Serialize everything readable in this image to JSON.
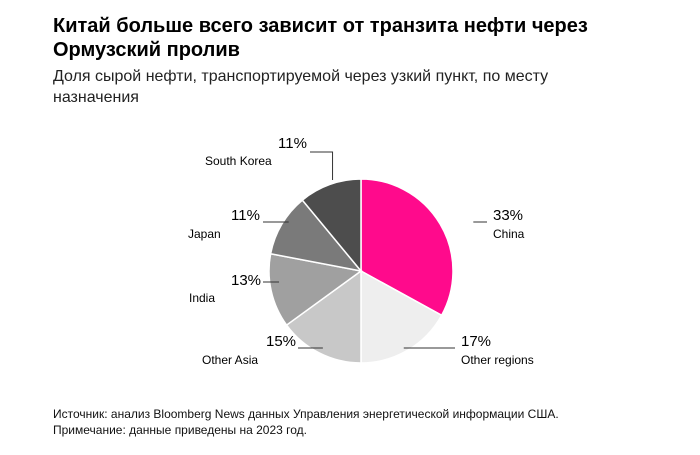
{
  "header": {
    "title": "Китай больше всего зависит от транзита нефти через Ормузский пролив",
    "subtitle": "Доля сырой нефти, транспортируемой через узкий пункт, по месту назначения"
  },
  "chart_data": {
    "type": "pie",
    "title": "Китай больше всего зависит от транзита нефти через Ормузский пролив",
    "subtitle": "Доля сырой нефти, транспортируемой через узкий пункт, по месту назначения",
    "unit": "%",
    "slices": [
      {
        "label": "China",
        "value": 33,
        "display": "33%",
        "color": "#ff0a8c"
      },
      {
        "label": "Other regions",
        "value": 17,
        "display": "17%",
        "color": "#eeeeee"
      },
      {
        "label": "Other Asia",
        "value": 15,
        "display": "15%",
        "color": "#c8c8c8"
      },
      {
        "label": "India",
        "value": 13,
        "display": "13%",
        "color": "#a0a0a0"
      },
      {
        "label": "Japan",
        "value": 11,
        "display": "11%",
        "color": "#7a7a7a"
      },
      {
        "label": "South Korea",
        "value": 11,
        "display": "11%",
        "color": "#4d4d4d"
      }
    ]
  },
  "footer": {
    "source": "Источник: анализ Bloomberg News данных Управления энергетической информации США.",
    "note": "Примечание: данные приведены на 2023 год."
  }
}
